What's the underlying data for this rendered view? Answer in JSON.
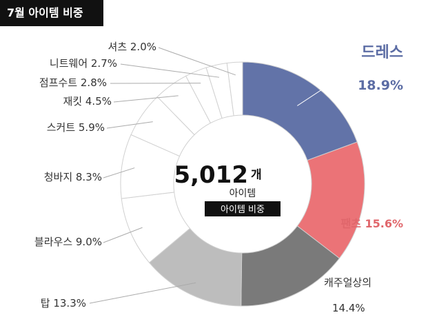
{
  "title": "7월 아이템 비중",
  "chart_data": {
    "type": "pie",
    "style": "donut",
    "title": "7월 아이템 비중",
    "center": {
      "total_value": "5,012",
      "total_unit": "개",
      "subtitle": "아이템",
      "badge": "아이템 비중"
    },
    "slices": [
      {
        "label": "드레스",
        "value": 18.9,
        "value_text": "18.9%",
        "color": "#6273A8",
        "label_color": "#5B6CA4",
        "emphasized": true
      },
      {
        "label": "팬츠",
        "value": 15.6,
        "value_text": "15.6%",
        "color": "#EB7377",
        "label_color": "#E0666B",
        "emphasized": true
      },
      {
        "label": "캐주얼상의",
        "value": 14.4,
        "value_text": "14.4%",
        "color": "#7A7A7A",
        "label_color": "#333333",
        "emphasized": false
      },
      {
        "label": "탑",
        "value": 13.3,
        "value_text": "13.3%",
        "color": "#BDBDBD",
        "label_color": "#333333",
        "emphasized": false
      },
      {
        "label": "블라우스",
        "value": 9.0,
        "value_text": "9.0%",
        "color": "#FFFFFF",
        "label_color": "#333333",
        "emphasized": false
      },
      {
        "label": "청바지",
        "value": 8.3,
        "value_text": "8.3%",
        "color": "#FFFFFF",
        "label_color": "#333333",
        "emphasized": false
      },
      {
        "label": "스커트",
        "value": 5.9,
        "value_text": "5.9%",
        "color": "#FFFFFF",
        "label_color": "#333333",
        "emphasized": false
      },
      {
        "label": "재킷",
        "value": 4.5,
        "value_text": "4.5%",
        "color": "#FFFFFF",
        "label_color": "#333333",
        "emphasized": false
      },
      {
        "label": "점프수트",
        "value": 2.8,
        "value_text": "2.8%",
        "color": "#FFFFFF",
        "label_color": "#333333",
        "emphasized": false
      },
      {
        "label": "니트웨어",
        "value": 2.7,
        "value_text": "2.7%",
        "color": "#FFFFFF",
        "label_color": "#333333",
        "emphasized": false
      },
      {
        "label": "셔츠",
        "value": 2.0,
        "value_text": "2.0%",
        "color": "#FFFFFF",
        "label_color": "#333333",
        "emphasized": false
      }
    ]
  }
}
